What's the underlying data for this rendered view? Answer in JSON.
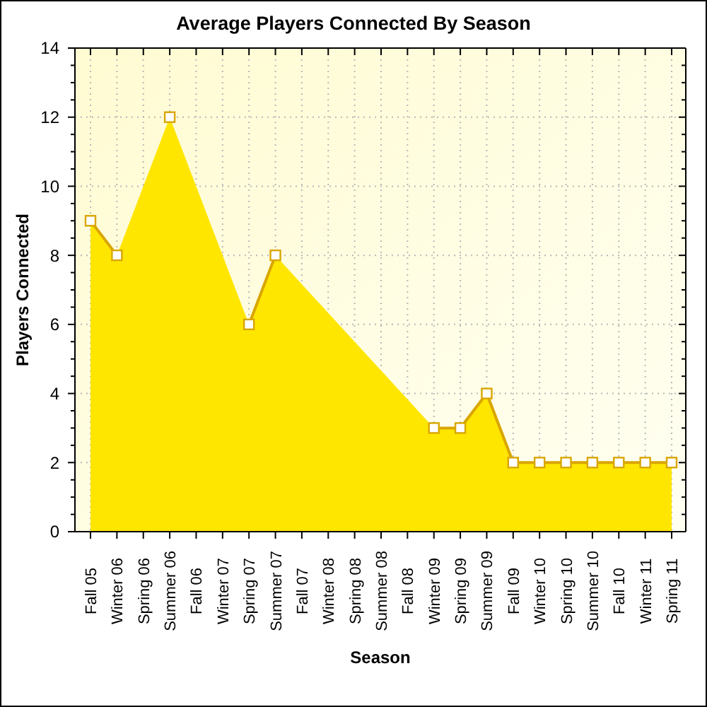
{
  "chart_data": {
    "type": "area",
    "title": "Average Players Connected By Season",
    "xlabel": "Season",
    "ylabel": "Players Connected",
    "categories": [
      "Fall 05",
      "Winter 06",
      "Spring 06",
      "Summer 06",
      "Fall 06",
      "Winter 07",
      "Spring 07",
      "Summer 07",
      "Fall 07",
      "Winter 08",
      "Spring 08",
      "Summer 08",
      "Fall 08",
      "Winter 09",
      "Spring 09",
      "Summer 09",
      "Fall 09",
      "Winter 10",
      "Spring 10",
      "Summer 10",
      "Fall 10",
      "Winter 11",
      "Spring 11"
    ],
    "values": [
      9,
      8,
      null,
      12,
      null,
      null,
      6,
      8,
      null,
      null,
      null,
      null,
      null,
      3,
      3,
      4,
      2,
      2,
      2,
      2,
      2,
      2,
      2
    ],
    "color": "#ffe600",
    "ylim": [
      0,
      14
    ],
    "yticks": [
      0,
      {
        "value": 0.5,
        "label": null
      },
      {
        "value": 1,
        "label": null
      },
      {
        "value": 1.5,
        "label": null
      },
      2,
      {
        "value": 2.5,
        "label": null
      },
      {
        "value": 3,
        "label": null
      },
      {
        "value": 3.5,
        "label": null
      },
      4,
      {
        "value": 4.5,
        "label": null
      },
      {
        "value": 5,
        "label": null
      },
      {
        "value": 5.5,
        "label": null
      },
      6,
      {
        "value": 6.5,
        "label": null
      },
      {
        "value": 7,
        "label": null
      },
      {
        "value": 7.5,
        "label": null
      },
      8,
      {
        "value": 8.5,
        "label": null
      },
      {
        "value": 9,
        "label": null
      },
      {
        "value": 9.5,
        "label": null
      },
      10,
      {
        "value": 10.5,
        "label": null
      },
      {
        "value": 11,
        "label": null
      },
      {
        "value": 11.5,
        "label": null
      },
      12,
      {
        "value": 12.5,
        "label": null
      },
      {
        "value": 13,
        "label": null
      },
      {
        "value": 13.5,
        "label": null
      },
      14
    ],
    "grid": true,
    "marker": "square"
  }
}
